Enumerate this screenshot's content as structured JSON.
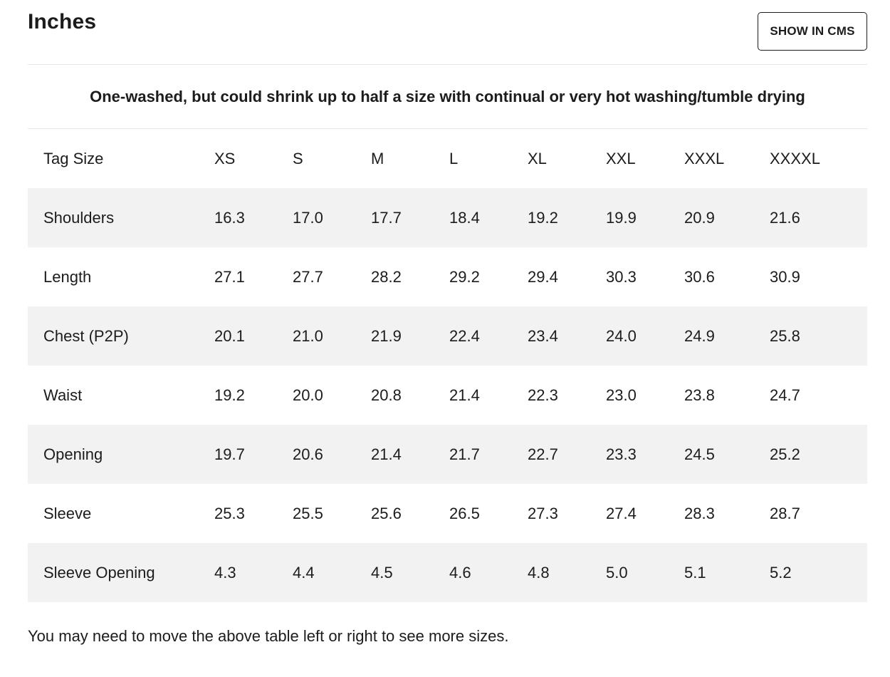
{
  "header": {
    "title": "Inches",
    "cms_button_label": "SHOW IN CMS"
  },
  "note": "One-washed, but could shrink up to half a size with continual or very hot washing/tumble drying",
  "table": {
    "row_label_header": "Tag Size",
    "columns": [
      "XS",
      "S",
      "M",
      "L",
      "XL",
      "XXL",
      "XXXL",
      "XXXXL"
    ],
    "rows": [
      {
        "label": "Shoulders",
        "values": [
          "16.3",
          "17.0",
          "17.7",
          "18.4",
          "19.2",
          "19.9",
          "20.9",
          "21.6"
        ]
      },
      {
        "label": "Length",
        "values": [
          "27.1",
          "27.7",
          "28.2",
          "29.2",
          "29.4",
          "30.3",
          "30.6",
          "30.9"
        ]
      },
      {
        "label": "Chest (P2P)",
        "values": [
          "20.1",
          "21.0",
          "21.9",
          "22.4",
          "23.4",
          "24.0",
          "24.9",
          "25.8"
        ]
      },
      {
        "label": "Waist",
        "values": [
          "19.2",
          "20.0",
          "20.8",
          "21.4",
          "22.3",
          "23.0",
          "23.8",
          "24.7"
        ]
      },
      {
        "label": "Opening",
        "values": [
          "19.7",
          "20.6",
          "21.4",
          "21.7",
          "22.7",
          "23.3",
          "24.5",
          "25.2"
        ]
      },
      {
        "label": "Sleeve",
        "values": [
          "25.3",
          "25.5",
          "25.6",
          "26.5",
          "27.3",
          "27.4",
          "28.3",
          "28.7"
        ]
      },
      {
        "label": "Sleeve Opening",
        "values": [
          "4.3",
          "4.4",
          "4.5",
          "4.6",
          "4.8",
          "5.0",
          "5.1",
          "5.2"
        ]
      }
    ]
  },
  "footer_text": "You may need to move the above table left or right to see more sizes."
}
